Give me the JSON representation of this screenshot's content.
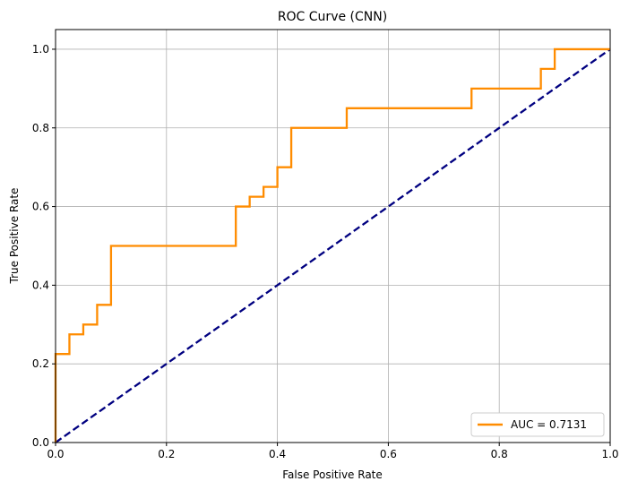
{
  "chart_data": {
    "type": "line",
    "title": "ROC Curve (CNN)",
    "xlabel": "False Positive Rate",
    "ylabel": "True Positive Rate",
    "xlim": [
      0.0,
      1.0
    ],
    "ylim": [
      0.0,
      1.05
    ],
    "xticks": [
      "0.0",
      "0.2",
      "0.4",
      "0.6",
      "0.8",
      "1.0"
    ],
    "yticks": [
      "0.0",
      "0.2",
      "0.4",
      "0.6",
      "0.8",
      "1.0"
    ],
    "grid": true,
    "legend_position": "lower-right",
    "series": [
      {
        "name": "AUC = 0.7131",
        "color": "#ff8c00",
        "line_style": "solid",
        "x": [
          0.0,
          0.0,
          0.025,
          0.025,
          0.05,
          0.05,
          0.075,
          0.075,
          0.1,
          0.1,
          0.325,
          0.325,
          0.35,
          0.35,
          0.375,
          0.375,
          0.4,
          0.4,
          0.425,
          0.425,
          0.525,
          0.525,
          0.75,
          0.75,
          0.875,
          0.875,
          0.9,
          0.9,
          1.0
        ],
        "y": [
          0.0,
          0.225,
          0.225,
          0.275,
          0.275,
          0.3,
          0.3,
          0.35,
          0.35,
          0.5,
          0.5,
          0.6,
          0.6,
          0.625,
          0.625,
          0.65,
          0.65,
          0.7,
          0.7,
          0.8,
          0.8,
          0.85,
          0.85,
          0.9,
          0.9,
          0.95,
          0.95,
          1.0,
          1.0
        ]
      },
      {
        "color": "#000080",
        "line_style": "dashed",
        "x": [
          0.0,
          1.0
        ],
        "y": [
          0.0,
          1.0
        ]
      }
    ]
  }
}
